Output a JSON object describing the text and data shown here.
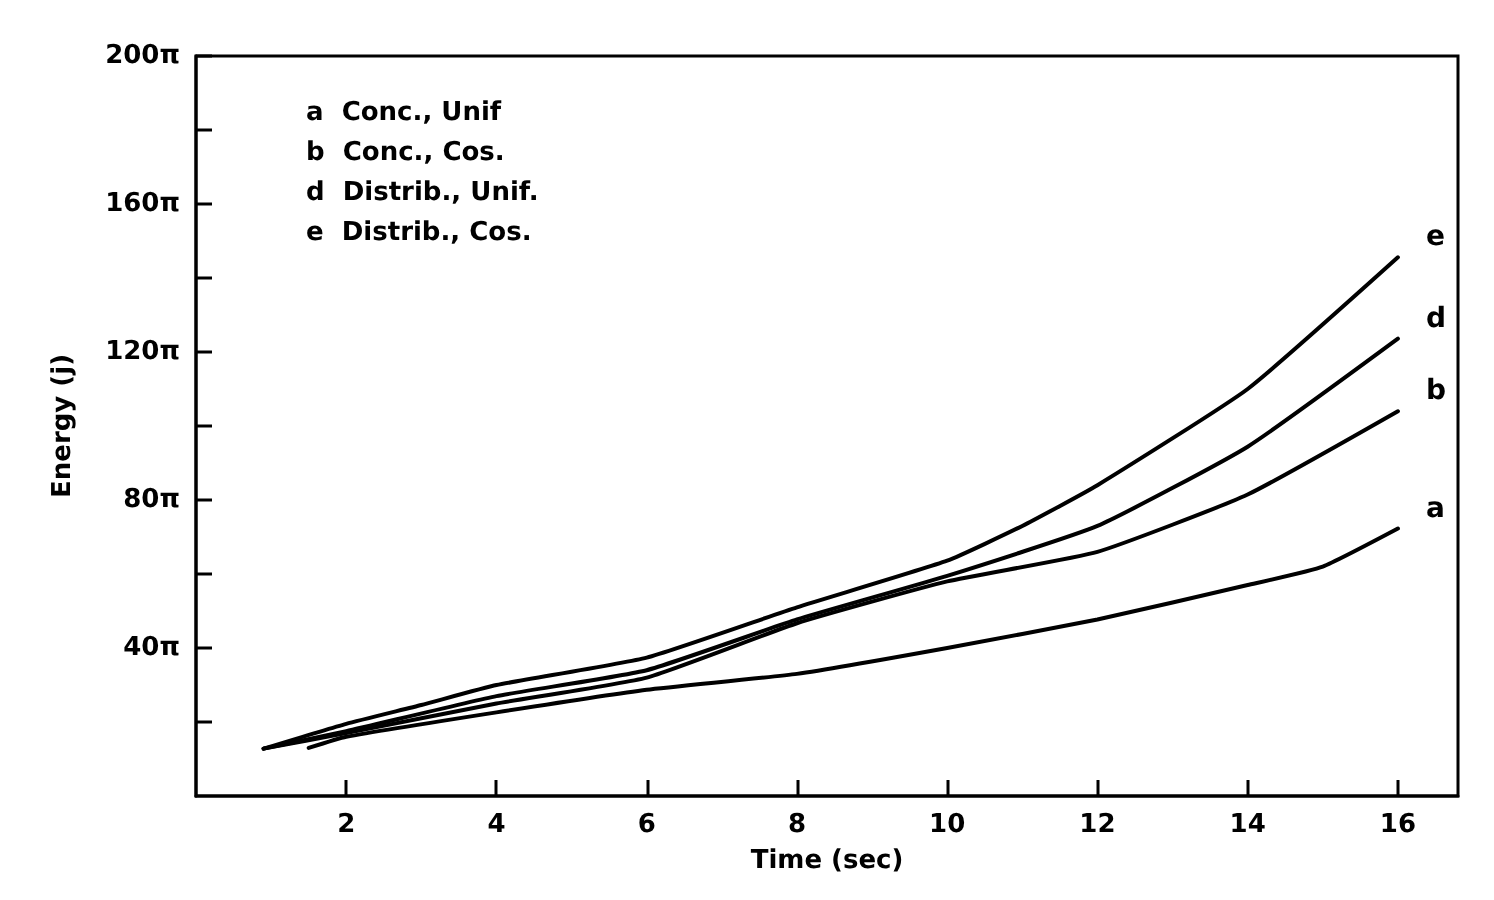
{
  "chart_data": {
    "type": "line",
    "xlabel": "Time (sec)",
    "ylabel": "Energy (j)",
    "annotations": [
      "a  Conc., Unif",
      "b  Conc., Cos.",
      "d  Distrib., Unif.",
      "e  Distrib., Cos."
    ],
    "xlim": [
      0,
      16.8
    ],
    "xticks": [
      2,
      4,
      6,
      8,
      10,
      12,
      14,
      16
    ],
    "ylim": [
      0,
      628.32
    ],
    "yticks": [
      {
        "value": 62.83,
        "label": null
      },
      {
        "value": 125.66,
        "label": "40π"
      },
      {
        "value": 188.5,
        "label": null
      },
      {
        "value": 251.33,
        "label": "80π"
      },
      {
        "value": 314.16,
        "label": null
      },
      {
        "value": 376.99,
        "label": "120π"
      },
      {
        "value": 439.82,
        "label": null
      },
      {
        "value": 502.65,
        "label": "160π"
      },
      {
        "value": 565.49,
        "label": null
      },
      {
        "value": 628.32,
        "label": "200π"
      }
    ],
    "grid": false,
    "legend": false,
    "marker": "none",
    "line_style": "solid",
    "series": [
      {
        "name": "a",
        "color": "#000000",
        "x": [
          1.5,
          2,
          4,
          6,
          8,
          10,
          12,
          14,
          15,
          16
        ],
        "values": [
          40.8,
          50.3,
          71.0,
          90.2,
          103.7,
          125.7,
          149.9,
          179.1,
          194.8,
          227.1
        ]
      },
      {
        "name": "b",
        "color": "#000000",
        "x": [
          0.9,
          2,
          4,
          6,
          8,
          10,
          12,
          14,
          16
        ],
        "values": [
          40.2,
          53.4,
          78.5,
          100.5,
          146.7,
          182.2,
          207.3,
          256.0,
          326.7
        ]
      },
      {
        "name": "d",
        "color": "#000000",
        "x": [
          0.9,
          2,
          4,
          6,
          8,
          10,
          12,
          14,
          16
        ],
        "values": [
          40.2,
          55.0,
          84.8,
          106.8,
          149.9,
          186.9,
          229.3,
          296.6,
          388.3
        ]
      },
      {
        "name": "e",
        "color": "#000000",
        "x": [
          0.9,
          2,
          3,
          4,
          6,
          8,
          10,
          11,
          12,
          14,
          16
        ],
        "values": [
          40.2,
          61.3,
          77.3,
          94.2,
          117.5,
          160.2,
          199.8,
          229.3,
          263.9,
          345.6,
          457.4
        ]
      }
    ]
  }
}
